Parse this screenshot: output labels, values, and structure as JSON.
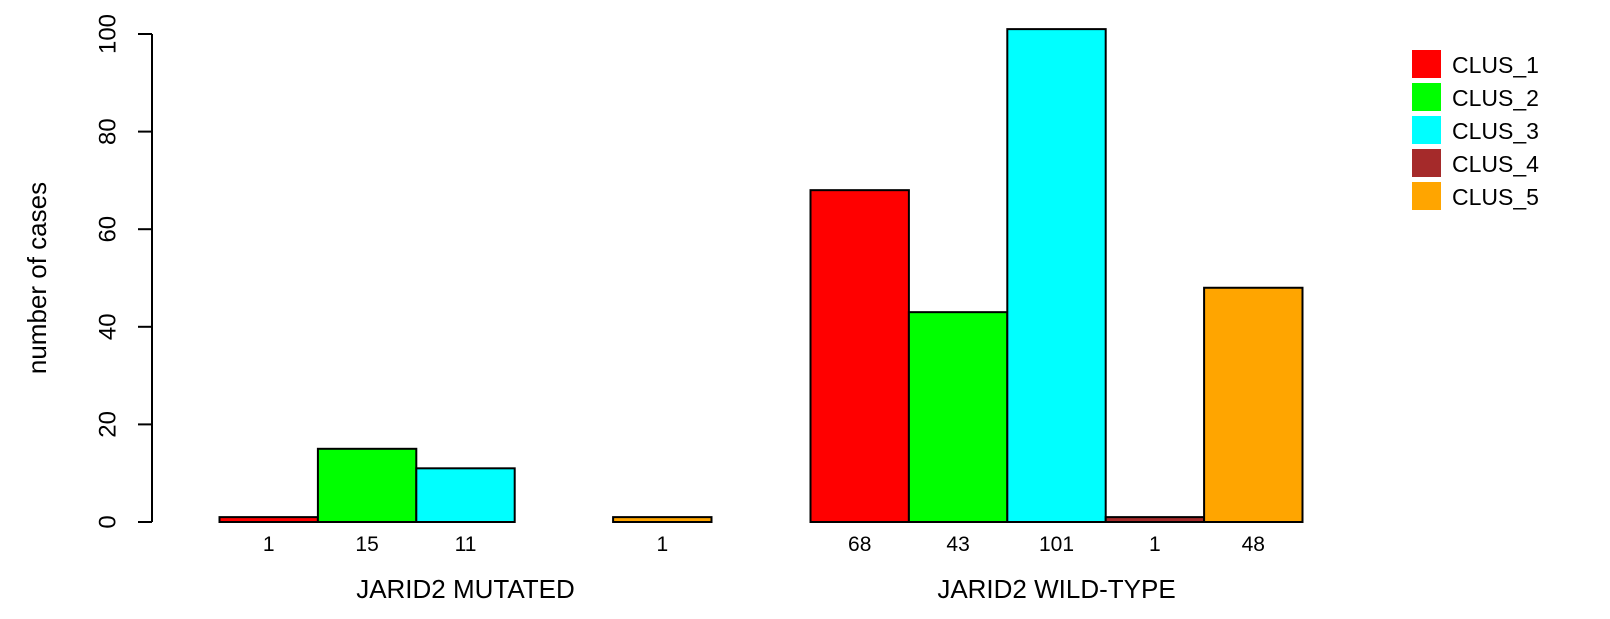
{
  "chart_data": {
    "type": "bar",
    "ylabel": "number of cases",
    "ylim": [
      0,
      100
    ],
    "yticks": [
      0,
      20,
      40,
      60,
      80,
      100
    ],
    "groups": [
      {
        "label": "JARID2 MUTATED",
        "values": [
          1,
          15,
          11,
          0,
          1
        ],
        "value_labels": [
          "1",
          "15",
          "11",
          "",
          "1"
        ]
      },
      {
        "label": "JARID2 WILD-TYPE",
        "values": [
          68,
          43,
          101,
          1,
          48
        ],
        "value_labels": [
          "68",
          "43",
          "101",
          "1",
          "48"
        ]
      }
    ],
    "series": [
      {
        "name": "CLUS_1",
        "color": "#ff0000"
      },
      {
        "name": "CLUS_2",
        "color": "#00ff00"
      },
      {
        "name": "CLUS_3",
        "color": "#00ffff"
      },
      {
        "name": "CLUS_4",
        "color": "#a52a2a"
      },
      {
        "name": "CLUS_5",
        "color": "#ffa500"
      }
    ],
    "legend_position": "top-right",
    "grid": false
  }
}
